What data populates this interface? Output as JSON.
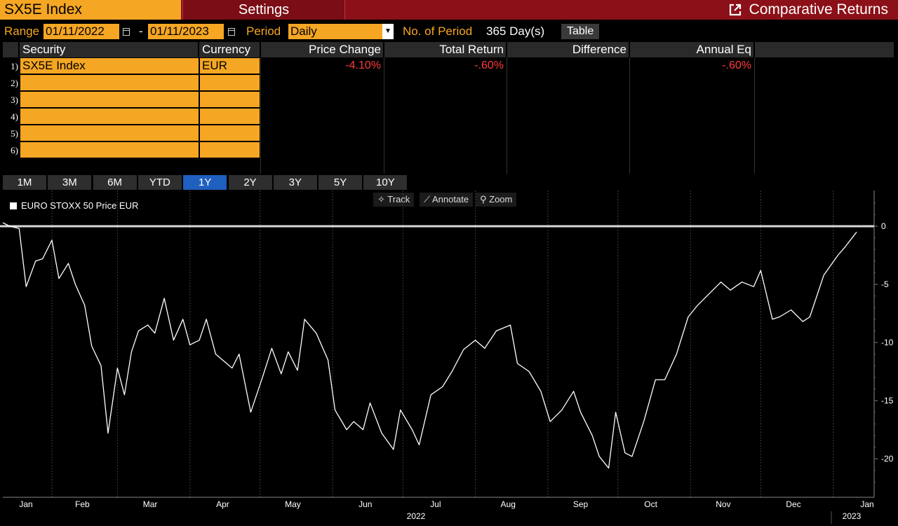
{
  "header": {
    "ticker": "SX5E Index",
    "settings_tab": "Settings",
    "title": "Comparative Returns",
    "title_icon": "popout-icon"
  },
  "range_row": {
    "range_label": "Range",
    "start_date": "01/11/2022",
    "dash": "-",
    "end_date": "01/11/2023",
    "period_label": "Period",
    "period_value": "Daily",
    "num_period_label": "No. of Period",
    "num_period_value": "365 Day(s)",
    "table_button": "Table"
  },
  "table": {
    "columns": [
      "Security",
      "Currency",
      "Price Change",
      "Total Return",
      "Difference",
      "Annual Eq"
    ],
    "row_numbers": [
      "1)",
      "2)",
      "3)",
      "4)",
      "5)",
      "6)"
    ],
    "rows": [
      {
        "security": "SX5E Index",
        "currency": "EUR",
        "price_change": "-4.10%",
        "total_return": "-.60%",
        "difference": "",
        "annual_eq": "-.60%"
      },
      {
        "security": "",
        "currency": ""
      },
      {
        "security": "",
        "currency": ""
      },
      {
        "security": "",
        "currency": ""
      },
      {
        "security": "",
        "currency": ""
      },
      {
        "security": "",
        "currency": ""
      }
    ]
  },
  "period_tabs": [
    "1M",
    "3M",
    "6M",
    "YTD",
    "1Y",
    "2Y",
    "3Y",
    "5Y",
    "10Y"
  ],
  "active_period": "1Y",
  "chart_tools": {
    "track": "Track",
    "annotate": "Annotate",
    "zoom": "Zoom"
  },
  "chart_data": {
    "type": "line",
    "title": "",
    "legend": [
      "EURO STOXX 50 Price EUR"
    ],
    "legend_placement": "top-left",
    "x_tick_labels": [
      "Jan",
      "Feb",
      "Mar",
      "Apr",
      "May",
      "Jun",
      "Jul",
      "Aug",
      "Sep",
      "Oct",
      "Nov",
      "Dec",
      "Jan"
    ],
    "year_labels": [
      "2022",
      "2023"
    ],
    "y_ticks": [
      0,
      -5,
      -10,
      -15,
      -20
    ],
    "ylim": [
      -23,
      2.5
    ],
    "grid": "vertical",
    "zero_line": true,
    "series": [
      {
        "name": "EURO STOXX 50 Price EUR",
        "color": "#ffffff",
        "x": [
          "2022-01-11",
          "2022-01-14",
          "2022-01-18",
          "2022-01-21",
          "2022-01-25",
          "2022-01-28",
          "2022-02-01",
          "2022-02-04",
          "2022-02-08",
          "2022-02-11",
          "2022-02-15",
          "2022-02-18",
          "2022-02-22",
          "2022-02-25",
          "2022-03-01",
          "2022-03-04",
          "2022-03-07",
          "2022-03-10",
          "2022-03-14",
          "2022-03-17",
          "2022-03-21",
          "2022-03-25",
          "2022-03-29",
          "2022-04-01",
          "2022-04-05",
          "2022-04-08",
          "2022-04-12",
          "2022-04-19",
          "2022-04-22",
          "2022-04-27",
          "2022-05-02",
          "2022-05-06",
          "2022-05-10",
          "2022-05-13",
          "2022-05-17",
          "2022-05-20",
          "2022-05-25",
          "2022-05-30",
          "2022-06-02",
          "2022-06-07",
          "2022-06-10",
          "2022-06-14",
          "2022-06-17",
          "2022-06-22",
          "2022-06-27",
          "2022-06-30",
          "2022-07-05",
          "2022-07-08",
          "2022-07-13",
          "2022-07-18",
          "2022-07-22",
          "2022-07-27",
          "2022-08-01",
          "2022-08-05",
          "2022-08-10",
          "2022-08-16",
          "2022-08-19",
          "2022-08-24",
          "2022-08-29",
          "2022-09-02",
          "2022-09-07",
          "2022-09-12",
          "2022-09-15",
          "2022-09-20",
          "2022-09-23",
          "2022-09-27",
          "2022-09-30",
          "2022-10-04",
          "2022-10-07",
          "2022-10-12",
          "2022-10-17",
          "2022-10-21",
          "2022-10-26",
          "2022-10-31",
          "2022-11-04",
          "2022-11-09",
          "2022-11-14",
          "2022-11-18",
          "2022-11-23",
          "2022-11-28",
          "2022-12-01",
          "2022-12-06",
          "2022-12-09",
          "2022-12-14",
          "2022-12-19",
          "2022-12-22",
          "2022-12-28",
          "2023-01-03",
          "2023-01-06",
          "2023-01-11"
        ],
        "y": [
          0.3,
          0,
          -0.2,
          -5.2,
          -3,
          -2.8,
          -1.2,
          -4.5,
          -3.2,
          -5,
          -6.8,
          -10.3,
          -12,
          -17.8,
          -12.2,
          -14.5,
          -10.8,
          -9,
          -8.5,
          -9.2,
          -6.2,
          -9.8,
          -8,
          -10.2,
          -9.8,
          -8,
          -11,
          -12.2,
          -11,
          -16,
          -13,
          -10.5,
          -12.7,
          -10.8,
          -12.4,
          -8,
          -9.2,
          -11.5,
          -15.8,
          -17.5,
          -16.8,
          -17.5,
          -15.2,
          -17.8,
          -19.2,
          -15.8,
          -17.5,
          -18.8,
          -14.5,
          -13.8,
          -12.5,
          -10.6,
          -9.8,
          -10.5,
          -9,
          -8.5,
          -11.8,
          -12.5,
          -14.2,
          -16.8,
          -15.8,
          -14.2,
          -16,
          -18,
          -19.8,
          -20.8,
          -16,
          -19.5,
          -19.8,
          -16.8,
          -13.2,
          -13.2,
          -11,
          -7.8,
          -6.8,
          -5.8,
          -4.8,
          -5.5,
          -4.8,
          -5.2,
          -3.8,
          -8,
          -7.8,
          -7.2,
          -8.2,
          -7.8,
          -4.2,
          -2.5,
          -1.8,
          -0.5
        ]
      }
    ]
  }
}
